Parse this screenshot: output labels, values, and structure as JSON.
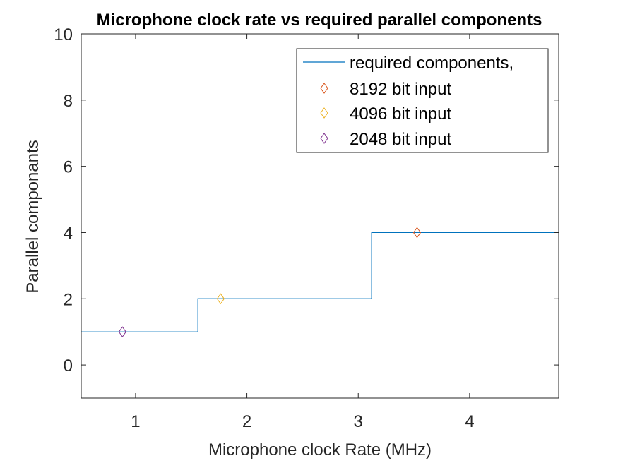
{
  "chart_data": {
    "type": "line",
    "title": "Microphone clock rate vs required parallel components",
    "xlabel": "Microphone clock Rate (MHz)",
    "ylabel": "Parallel componants",
    "xlim": [
      0.512,
      4.8
    ],
    "ylim": [
      -1,
      10
    ],
    "xticks": [
      1,
      2,
      3,
      4
    ],
    "yticks": [
      0,
      2,
      4,
      6,
      8,
      10
    ],
    "grid": false,
    "legend_position": "top-right",
    "series": [
      {
        "name": "required components,",
        "kind": "step-line",
        "color": "#0072BD",
        "x": [
          0.512,
          1.56,
          1.56,
          3.12,
          3.12,
          4.8
        ],
        "y": [
          1,
          1,
          2,
          2,
          4,
          4
        ]
      },
      {
        "name": "8192 bit input",
        "kind": "marker",
        "marker": "diamond",
        "color": "#D95319",
        "x": [
          3.528
        ],
        "y": [
          4
        ]
      },
      {
        "name": "4096 bit input",
        "kind": "marker",
        "marker": "diamond",
        "color": "#EDB120",
        "x": [
          1.764
        ],
        "y": [
          2
        ]
      },
      {
        "name": "2048 bit input",
        "kind": "marker",
        "marker": "diamond",
        "color": "#7E2F8E",
        "x": [
          0.882
        ],
        "y": [
          1
        ]
      }
    ]
  }
}
